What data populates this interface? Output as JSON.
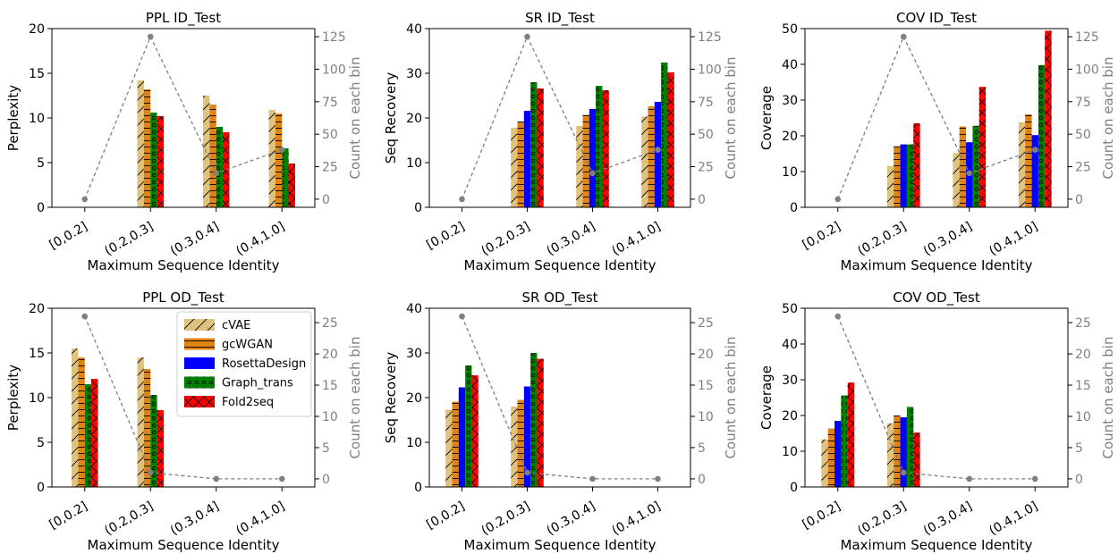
{
  "colors": {
    "cVAE": "#dfc27d",
    "gcWGAN": "#e08214",
    "RosettaDesign": "#0000ff",
    "Graph_trans": "#008000",
    "Fold2seq": "#ff0000",
    "count_line": "#808080"
  },
  "legend": {
    "placement": "upper-right",
    "entries": [
      "cVAE",
      "gcWGAN",
      "RosettaDesign",
      "Graph_trans",
      "Fold2seq"
    ]
  },
  "right_axis_label": "Count on each bin",
  "chart_data": [
    {
      "type": "bar",
      "title": "PPL ID_Test",
      "xlabel": "Maximum Sequence Identity",
      "ylabel": "Perplexity",
      "categories": [
        "[0,0.2]",
        "(0.2,0.3]",
        "(0.3,0.4]",
        "(0.4,1.0]"
      ],
      "ylim": [
        0,
        20
      ],
      "yticks": [
        0,
        5,
        10,
        15,
        20
      ],
      "series": [
        {
          "name": "cVAE",
          "values": [
            null,
            14.2,
            12.5,
            10.9
          ]
        },
        {
          "name": "gcWGAN",
          "values": [
            null,
            13.2,
            11.5,
            10.5
          ]
        },
        {
          "name": "Graph_trans",
          "values": [
            null,
            10.6,
            9.0,
            6.6
          ]
        },
        {
          "name": "Fold2seq",
          "values": [
            null,
            10.2,
            8.4,
            4.9
          ]
        }
      ],
      "count": {
        "values": [
          0,
          125,
          20,
          38
        ],
        "ylim": [
          -6.25,
          131.25
        ],
        "yticks": [
          0,
          25,
          50,
          75,
          100,
          125
        ]
      }
    },
    {
      "type": "bar",
      "title": "SR ID_Test",
      "xlabel": "Maximum Sequence Identity",
      "ylabel": "Seq Recovery",
      "categories": [
        "[0,0.2]",
        "(0.2,0.3]",
        "(0.3,0.4]",
        "(0.4,1.0]"
      ],
      "ylim": [
        0,
        40
      ],
      "yticks": [
        0,
        10,
        20,
        30,
        40
      ],
      "series": [
        {
          "name": "cVAE",
          "values": [
            null,
            17.8,
            18.2,
            20.3
          ]
        },
        {
          "name": "gcWGAN",
          "values": [
            null,
            19.2,
            20.7,
            22.6
          ]
        },
        {
          "name": "RosettaDesign",
          "values": [
            null,
            21.6,
            22.0,
            23.6
          ]
        },
        {
          "name": "Graph_trans",
          "values": [
            null,
            28.0,
            27.2,
            32.4
          ]
        },
        {
          "name": "Fold2seq",
          "values": [
            null,
            26.6,
            26.2,
            30.2
          ]
        }
      ],
      "count": {
        "values": [
          0,
          125,
          20,
          38
        ],
        "ylim": [
          -6.25,
          131.25
        ],
        "yticks": [
          0,
          25,
          50,
          75,
          100,
          125
        ]
      }
    },
    {
      "type": "bar",
      "title": "COV ID_Test",
      "xlabel": "Maximum Sequence Identity",
      "ylabel": "Coverage",
      "categories": [
        "[0,0.2]",
        "(0.2,0.3]",
        "(0.3,0.4]",
        "(0.4,1.0]"
      ],
      "ylim": [
        0,
        50
      ],
      "yticks": [
        0,
        10,
        20,
        30,
        40,
        50
      ],
      "series": [
        {
          "name": "cVAE",
          "values": [
            null,
            11.6,
            15.2,
            23.8
          ]
        },
        {
          "name": "gcWGAN",
          "values": [
            null,
            17.1,
            22.6,
            26.0
          ]
        },
        {
          "name": "RosettaDesign",
          "values": [
            null,
            17.6,
            18.2,
            20.2
          ]
        },
        {
          "name": "Graph_trans",
          "values": [
            null,
            17.6,
            22.8,
            39.8
          ]
        },
        {
          "name": "Fold2seq",
          "values": [
            null,
            23.5,
            33.7,
            49.4
          ]
        }
      ],
      "count": {
        "values": [
          0,
          125,
          20,
          38
        ],
        "ylim": [
          -6.25,
          131.25
        ],
        "yticks": [
          0,
          25,
          50,
          75,
          100,
          125
        ]
      }
    },
    {
      "type": "bar",
      "title": "PPL OD_Test",
      "xlabel": "Maximum Sequence Identity",
      "ylabel": "Perplexity",
      "categories": [
        "[0,0.2]",
        "(0.2,0.3]",
        "(0.3,0.4]",
        "(0.4,1.0]"
      ],
      "ylim": [
        0,
        20
      ],
      "yticks": [
        0,
        5,
        10,
        15,
        20
      ],
      "series": [
        {
          "name": "cVAE",
          "values": [
            15.5,
            14.5,
            null,
            null
          ]
        },
        {
          "name": "gcWGAN",
          "values": [
            14.5,
            13.2,
            null,
            null
          ]
        },
        {
          "name": "Graph_trans",
          "values": [
            11.5,
            10.3,
            null,
            null
          ]
        },
        {
          "name": "Fold2seq",
          "values": [
            12.1,
            8.6,
            null,
            null
          ]
        }
      ],
      "count": {
        "values": [
          26,
          1,
          0,
          0
        ],
        "ylim": [
          -1.3,
          27.3
        ],
        "yticks": [
          0,
          5,
          10,
          15,
          20,
          25
        ]
      }
    },
    {
      "type": "bar",
      "title": "SR OD_Test",
      "xlabel": "Maximum Sequence Identity",
      "ylabel": "Seq Recovery",
      "categories": [
        "[0,0.2]",
        "(0.2,0.3]",
        "(0.3,0.4]",
        "(0.4,1.0]"
      ],
      "ylim": [
        0,
        40
      ],
      "yticks": [
        0,
        10,
        20,
        30,
        40
      ],
      "series": [
        {
          "name": "cVAE",
          "values": [
            17.3,
            18.0,
            null,
            null
          ]
        },
        {
          "name": "gcWGAN",
          "values": [
            19.1,
            19.5,
            null,
            null
          ]
        },
        {
          "name": "RosettaDesign",
          "values": [
            22.3,
            22.5,
            null,
            null
          ]
        },
        {
          "name": "Graph_trans",
          "values": [
            27.2,
            30.0,
            null,
            null
          ]
        },
        {
          "name": "Fold2seq",
          "values": [
            25.0,
            28.7,
            null,
            null
          ]
        }
      ],
      "count": {
        "values": [
          26,
          1,
          0,
          0
        ],
        "ylim": [
          -1.3,
          27.3
        ],
        "yticks": [
          0,
          5,
          10,
          15,
          20,
          25
        ]
      }
    },
    {
      "type": "bar",
      "title": "COV OD_Test",
      "xlabel": "Maximum Sequence Identity",
      "ylabel": "Coverage",
      "categories": [
        "[0,0.2]",
        "(0.2,0.3]",
        "(0.3,0.4]",
        "(0.4,1.0]"
      ],
      "ylim": [
        0,
        50
      ],
      "yticks": [
        0,
        10,
        20,
        30,
        40,
        50
      ],
      "series": [
        {
          "name": "cVAE",
          "values": [
            13.3,
            17.8,
            null,
            null
          ]
        },
        {
          "name": "gcWGAN",
          "values": [
            16.3,
            20.0,
            null,
            null
          ]
        },
        {
          "name": "RosettaDesign",
          "values": [
            18.5,
            19.5,
            null,
            null
          ]
        },
        {
          "name": "Graph_trans",
          "values": [
            25.6,
            22.4,
            null,
            null
          ]
        },
        {
          "name": "Fold2seq",
          "values": [
            29.2,
            15.2,
            null,
            null
          ]
        }
      ],
      "count": {
        "values": [
          26,
          1,
          0,
          0
        ],
        "ylim": [
          -1.3,
          27.3
        ],
        "yticks": [
          0,
          5,
          10,
          15,
          20,
          25
        ]
      }
    }
  ]
}
